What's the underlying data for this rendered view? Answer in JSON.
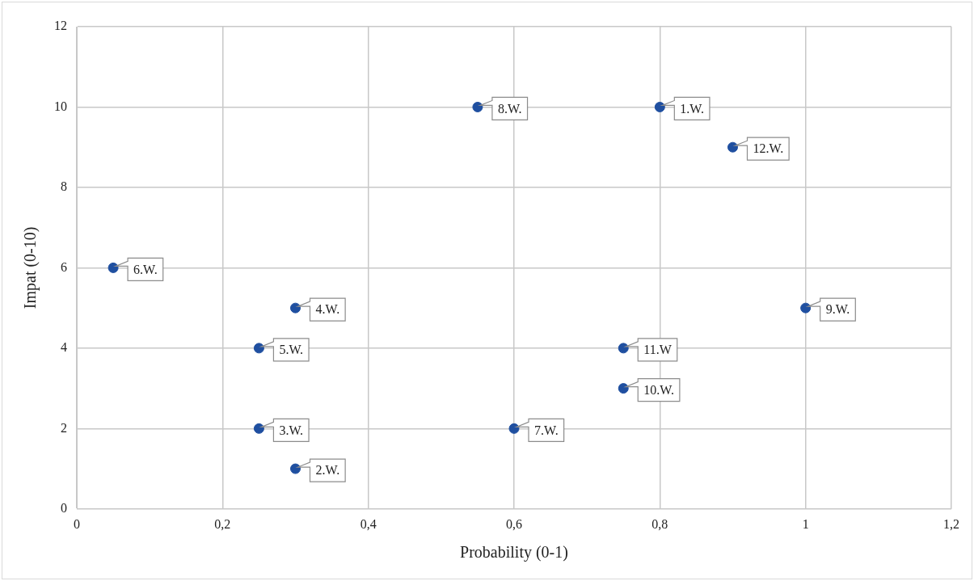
{
  "chart_data": {
    "type": "scatter",
    "xlabel": "Probability (0-1)",
    "ylabel": "Impat (0-10)",
    "x": [
      0.8,
      0.3,
      0.25,
      0.3,
      0.25,
      0.05,
      0.6,
      0.55,
      1,
      0.75,
      0.75,
      0.9
    ],
    "values": [
      10,
      1,
      2,
      5,
      4,
      6,
      2,
      10,
      5,
      3,
      4,
      9
    ],
    "color": "#1f4fa0",
    "marker": "circle",
    "grid": true,
    "xlim": [
      0,
      1.2
    ],
    "ylim": [
      0,
      12
    ],
    "xticks": [
      0,
      {
        "value": 0.2,
        "label": "0,2"
      },
      {
        "value": 0.4,
        "label": "0,4"
      },
      {
        "value": 0.6,
        "label": "0,6"
      },
      {
        "value": 0.8,
        "label": "0,8"
      },
      1,
      {
        "value": 1.2,
        "label": "1,2"
      }
    ],
    "yticks": [
      0,
      2,
      4,
      6,
      8,
      10,
      12
    ],
    "annotations": [
      {
        "text": "1.W.",
        "x": 0.8,
        "y": 10
      },
      {
        "text": "2.W.",
        "x": 0.3,
        "y": 1
      },
      {
        "text": "3.W.",
        "x": 0.25,
        "y": 2
      },
      {
        "text": "4.W.",
        "x": 0.3,
        "y": 5
      },
      {
        "text": "5.W.",
        "x": 0.25,
        "y": 4
      },
      {
        "text": "6.W.",
        "x": 0.05,
        "y": 6
      },
      {
        "text": "7.W.",
        "x": 0.6,
        "y": 2
      },
      {
        "text": "8.W.",
        "x": 0.55,
        "y": 10
      },
      {
        "text": "9.W.",
        "x": 1,
        "y": 5
      },
      {
        "text": "10.W.",
        "x": 0.75,
        "y": 3
      },
      {
        "text": "11.W",
        "x": 0.75,
        "y": 4
      },
      {
        "text": "12.W.",
        "x": 0.9,
        "y": 9
      }
    ]
  }
}
